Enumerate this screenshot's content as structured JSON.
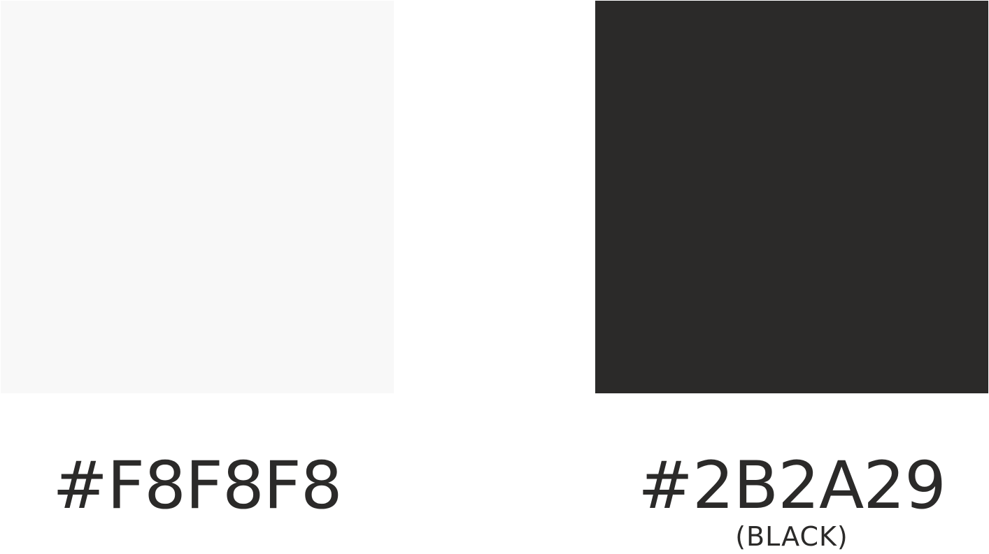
{
  "swatches": [
    {
      "hex_label": "#F8F8F8",
      "note": "",
      "color": "#F8F8F8"
    },
    {
      "hex_label": "#2B2A29",
      "note": "(BLACK)",
      "color": "#2B2A29"
    }
  ],
  "text_color": "#2B2A29",
  "background_color": "#FFFFFF"
}
